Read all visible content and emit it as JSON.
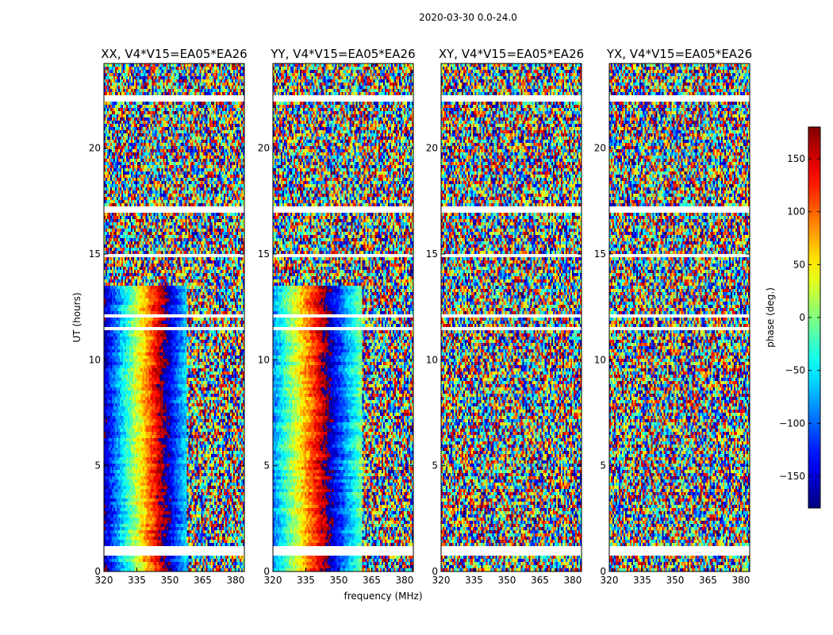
{
  "chart_data": {
    "type": "heatmap",
    "suptitle": "2020-03-30 0.0-24.0",
    "xlabel": "frequency (MHz)",
    "ylabel": "UT (hours)",
    "x_ticks": [
      "320",
      "335",
      "350",
      "365",
      "380"
    ],
    "x_tick_values": [
      320,
      335,
      350,
      365,
      380
    ],
    "xlim": [
      320,
      384
    ],
    "y_ticks": [
      "0",
      "5",
      "10",
      "15",
      "20"
    ],
    "y_tick_values": [
      0,
      5,
      10,
      15,
      20
    ],
    "ylim": [
      0,
      24
    ],
    "colorbar": {
      "label": "phase (deg.)",
      "ticks": [
        "−150",
        "−100",
        "−50",
        "0",
        "50",
        "100",
        "150"
      ],
      "tick_values": [
        -150,
        -100,
        -50,
        0,
        50,
        100,
        150
      ],
      "range": [
        -180,
        180
      ],
      "colormap": "jet"
    },
    "panels": [
      {
        "title": "XX, V4*V15=EA05*EA26",
        "pattern": "structured",
        "phase_zero_mhz": 333,
        "phase_slope_deg_per_mhz": 12.5,
        "noise_above_mhz": 358
      },
      {
        "title": "YY, V4*V15=EA05*EA26",
        "pattern": "structured",
        "phase_zero_mhz": 328,
        "phase_slope_deg_per_mhz": 11.0,
        "noise_above_mhz": 361
      },
      {
        "title": "XY, V4*V15=EA05*EA26",
        "pattern": "noise"
      },
      {
        "title": "YX, V4*V15=EA05*EA26",
        "pattern": "noise"
      }
    ],
    "flagged_ut_intervals": [
      [
        0.68,
        1.15
      ],
      [
        22.25,
        22.45
      ],
      [
        17.0,
        17.2
      ],
      [
        14.9,
        15.05
      ],
      [
        12.05,
        12.15
      ],
      [
        11.4,
        11.5
      ]
    ],
    "grid": false
  }
}
